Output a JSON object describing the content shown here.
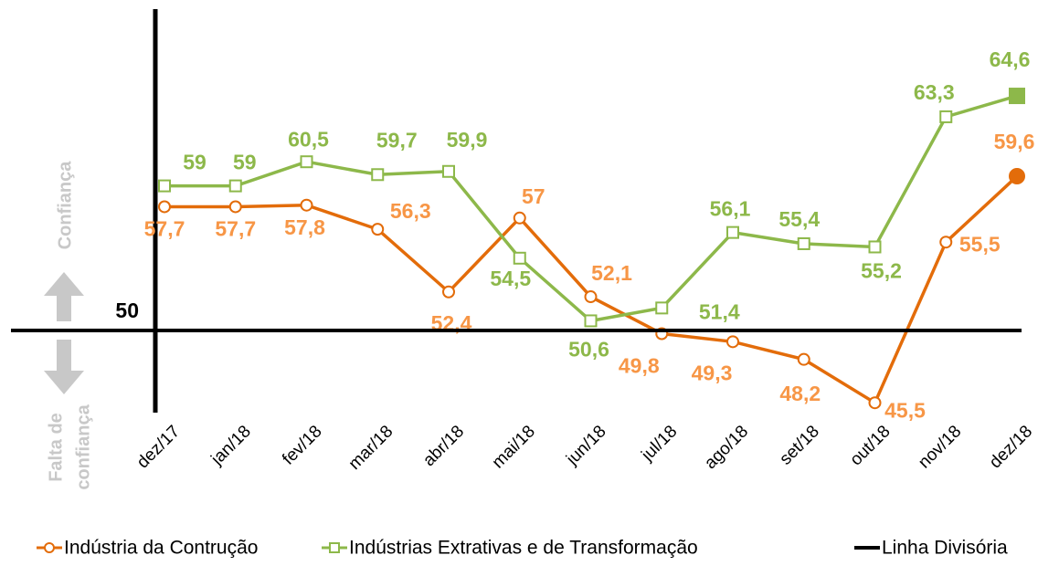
{
  "chart_data": {
    "type": "line",
    "categories": [
      "dez/17",
      "jan/18",
      "fev/18",
      "mar/18",
      "abr/18",
      "mai/18",
      "jun/18",
      "jul/18",
      "ago/18",
      "set/18",
      "out/18",
      "nov/18",
      "dez/18"
    ],
    "series": [
      {
        "name": "Indústria da Contrução",
        "color": "#e36c0a",
        "label_color": "#f79646",
        "values": [
          57.7,
          57.7,
          57.8,
          56.3,
          52.4,
          57,
          52.1,
          49.8,
          49.3,
          48.2,
          45.5,
          55.5,
          59.6
        ],
        "value_labels": [
          "57,7",
          "57,7",
          "57,8",
          "56,3",
          "52,4",
          "57",
          "52,1",
          "49,8",
          "49,3",
          "48,2",
          "45,5",
          "55,5",
          "59,6"
        ]
      },
      {
        "name": "Indústrias Extrativas e de Transformação",
        "color": "#8db84a",
        "label_color": "#8db84a",
        "values": [
          59,
          59,
          60.5,
          59.7,
          59.9,
          54.5,
          50.6,
          51.4,
          56.1,
          55.4,
          55.2,
          63.3,
          64.6
        ],
        "value_labels": [
          "59",
          "59",
          "60,5",
          "59,7",
          "59,9",
          "54,5",
          "50,6",
          "51,4",
          "56,1",
          "55,4",
          "55,2",
          "63,3",
          "64,6"
        ]
      },
      {
        "name": "Linha Divisória",
        "color": "#000000",
        "values": [
          50,
          50,
          50,
          50,
          50,
          50,
          50,
          50,
          50,
          50,
          50,
          50,
          50
        ]
      }
    ],
    "ylim": [
      45,
      70
    ],
    "yticks": [
      50
    ],
    "annotations": {
      "up": "Confiança",
      "down": [
        "Falta de",
        "confiança"
      ]
    }
  }
}
